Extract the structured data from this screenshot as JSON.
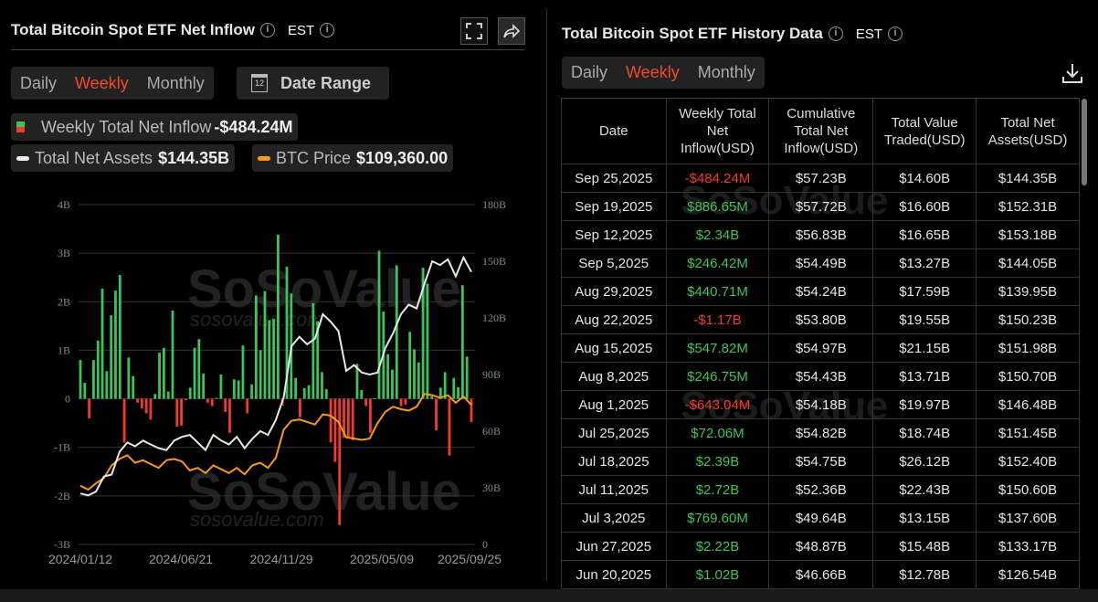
{
  "left": {
    "title": "Total Bitcoin Spot ETF Net Inflow",
    "tz": "EST",
    "periods": [
      "Daily",
      "Weekly",
      "Monthly"
    ],
    "active_period": "Weekly",
    "date_range_label": "Date Range",
    "calendar_day": "12",
    "legend": {
      "inflow_label": "Weekly Total Net Inflow",
      "inflow_value": "-$484.24M",
      "assets_label": "Total Net Assets",
      "assets_value": "$144.35B",
      "btc_label": "BTC Price",
      "btc_value": "$109,360.00"
    },
    "watermark": "SoSoValue",
    "watermark_url": "sosovalue.com"
  },
  "colors": {
    "inflow_pos": "#3ec25a",
    "inflow_neg": "#f03c2c",
    "assets_line": "#e8e8e8",
    "btc_line": "#f59a1a",
    "active": "#f04a2a"
  },
  "chart_data": {
    "type": "bar+line",
    "x_ticks": [
      "2024/01/12",
      "2024/06/21",
      "2024/11/29",
      "2025/05/09",
      "2025/09/25"
    ],
    "y_left": {
      "ticks": [
        "4B",
        "3B",
        "2B",
        "1B",
        "0",
        "-1B",
        "-2B",
        "-3B"
      ],
      "range": [
        -3,
        4
      ],
      "unit": "B USD"
    },
    "y_right": {
      "ticks": [
        "180B",
        "150B",
        "120B",
        "90B",
        "60B",
        "30B",
        "0"
      ],
      "range": [
        0,
        180
      ],
      "unit": "B USD"
    },
    "grid": true,
    "series": [
      {
        "name": "Weekly Total Net Inflow",
        "type": "bar",
        "values": [
          0.8,
          0.33,
          -0.4,
          0.8,
          1.2,
          2.27,
          0.57,
          1.72,
          2.23,
          2.55,
          -0.9,
          0.85,
          0.47,
          -0.08,
          -0.2,
          -0.3,
          -0.43,
          0.1,
          0.95,
          1.05,
          0.15,
          1.82,
          -0.57,
          -0.55,
          -0.03,
          0.23,
          1.05,
          1.23,
          0.52,
          -0.08,
          -0.15,
          0.02,
          0.5,
          -0.27,
          -0.7,
          0.4,
          0.38,
          1.1,
          -0.3,
          0.3,
          2.13,
          1.0,
          2.22,
          1.62,
          1.65,
          3.38,
          -0.14,
          2.72,
          2.17,
          0.43,
          -0.38,
          0.22,
          0.28,
          1.97,
          1.6,
          0.55,
          0.2,
          -0.9,
          -1.3,
          -2.6,
          -0.8,
          -0.8,
          -0.85,
          0.72,
          0.18,
          -0.15,
          -0.7,
          0.01,
          3.05,
          1.8,
          0.92,
          0.6,
          2.75,
          -0.15,
          -0.12,
          1.38,
          1.02,
          0.75,
          2.7,
          2.37,
          0.05,
          -0.65,
          0.23,
          0.55,
          -1.17,
          0.43,
          0.24,
          2.34,
          0.87,
          -0.48
        ]
      },
      {
        "name": "Total Net Assets",
        "type": "line",
        "axis": "right",
        "values": [
          27,
          26,
          28,
          36,
          37,
          49,
          54,
          52,
          55,
          53,
          51,
          50,
          55,
          57,
          58,
          54,
          50,
          58,
          55,
          53,
          57,
          51,
          56,
          60,
          58,
          66,
          78,
          105,
          110,
          106,
          109,
          122,
          118,
          113,
          92,
          95,
          91,
          90,
          91,
          104,
          112,
          122,
          127,
          125,
          138,
          150,
          148,
          151,
          142,
          152,
          144.35
        ]
      },
      {
        "name": "BTC Price",
        "type": "line",
        "axis": "hidden",
        "values": [
          46000,
          43000,
          48000,
          52000,
          62000,
          67000,
          70000,
          64000,
          66000,
          63000,
          60000,
          66000,
          67000,
          65000,
          58000,
          60000,
          56000,
          62000,
          59000,
          56000,
          60000,
          55000,
          62000,
          64000,
          60000,
          68000,
          90000,
          97000,
          98000,
          96000,
          94000,
          102000,
          101000,
          96000,
          84000,
          83000,
          82000,
          83000,
          95000,
          104000,
          108000,
          106000,
          105000,
          108000,
          118000,
          117000,
          115000,
          117000,
          111000,
          116000,
          109360
        ]
      }
    ]
  },
  "right": {
    "title": "Total Bitcoin Spot ETF History Data",
    "tz": "EST",
    "periods": [
      "Daily",
      "Weekly",
      "Monthly"
    ],
    "active_period": "Weekly",
    "columns": [
      "Date",
      "Weekly Total Net Inflow(USD)",
      "Cumulative Total Net Inflow(USD)",
      "Total Value Traded(USD)",
      "Total Net Assets(USD)"
    ],
    "rows": [
      [
        "Sep 25,2025",
        "-$484.24M",
        "$57.23B",
        "$14.60B",
        "$144.35B"
      ],
      [
        "Sep 19,2025",
        "$886.65M",
        "$57.72B",
        "$16.60B",
        "$152.31B"
      ],
      [
        "Sep 12,2025",
        "$2.34B",
        "$56.83B",
        "$16.65B",
        "$153.18B"
      ],
      [
        "Sep 5,2025",
        "$246.42M",
        "$54.49B",
        "$13.27B",
        "$144.05B"
      ],
      [
        "Aug 29,2025",
        "$440.71M",
        "$54.24B",
        "$17.59B",
        "$139.95B"
      ],
      [
        "Aug 22,2025",
        "-$1.17B",
        "$53.80B",
        "$19.55B",
        "$150.23B"
      ],
      [
        "Aug 15,2025",
        "$547.82M",
        "$54.97B",
        "$21.15B",
        "$151.98B"
      ],
      [
        "Aug 8,2025",
        "$246.75M",
        "$54.43B",
        "$13.71B",
        "$150.70B"
      ],
      [
        "Aug 1,2025",
        "-$643.04M",
        "$54.18B",
        "$19.97B",
        "$146.48B"
      ],
      [
        "Jul 25,2025",
        "$72.06M",
        "$54.82B",
        "$18.74B",
        "$151.45B"
      ],
      [
        "Jul 18,2025",
        "$2.39B",
        "$54.75B",
        "$26.12B",
        "$152.40B"
      ],
      [
        "Jul 11,2025",
        "$2.72B",
        "$52.36B",
        "$22.43B",
        "$150.60B"
      ],
      [
        "Jul 3,2025",
        "$769.60M",
        "$49.64B",
        "$13.15B",
        "$137.60B"
      ],
      [
        "Jun 27,2025",
        "$2.22B",
        "$48.87B",
        "$15.48B",
        "$133.17B"
      ],
      [
        "Jun 20,2025",
        "$1.02B",
        "$46.66B",
        "$12.78B",
        "$126.54B"
      ]
    ]
  }
}
